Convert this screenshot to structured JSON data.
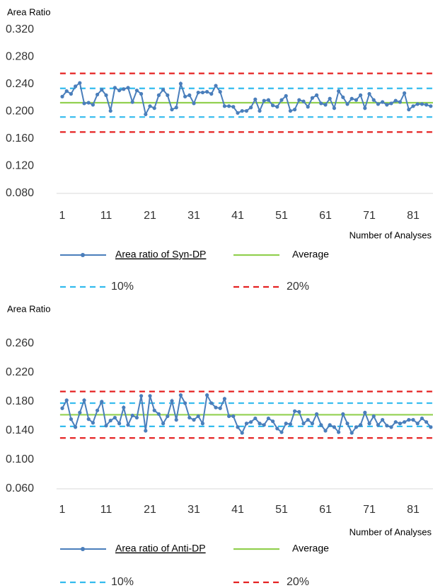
{
  "chart_data": [
    {
      "type": "line",
      "ylabel": "Area Ratio",
      "xlabel": "Number of Analyses",
      "categories": [
        1,
        null,
        null,
        null,
        null,
        null,
        null,
        null,
        null,
        null,
        11,
        null,
        null,
        null,
        null,
        null,
        null,
        null,
        null,
        null,
        21,
        null,
        null,
        null,
        null,
        null,
        null,
        null,
        null,
        null,
        31,
        null,
        null,
        null,
        null,
        null,
        null,
        null,
        null,
        null,
        41,
        null,
        null,
        null,
        null,
        null,
        null,
        null,
        null,
        null,
        51,
        null,
        null,
        null,
        null,
        null,
        null,
        null,
        null,
        null,
        61,
        null,
        null,
        null,
        null,
        null,
        null,
        null,
        null,
        null,
        71,
        null,
        null,
        null,
        null,
        null,
        null,
        null,
        null,
        null,
        81,
        null,
        null,
        null,
        null
      ],
      "series": [
        {
          "name": "Area ratio of Syn-DP",
          "color": "#4a7ebb",
          "values": [
            0.222,
            0.23,
            0.226,
            0.237,
            0.242,
            0.212,
            0.213,
            0.21,
            0.225,
            0.232,
            0.224,
            0.201,
            0.235,
            0.231,
            0.233,
            0.235,
            0.214,
            0.231,
            0.226,
            0.196,
            0.208,
            0.205,
            0.224,
            0.232,
            0.224,
            0.203,
            0.206,
            0.241,
            0.222,
            0.224,
            0.212,
            0.228,
            0.228,
            0.229,
            0.226,
            0.238,
            0.229,
            0.208,
            0.208,
            0.207,
            0.198,
            0.201,
            0.201,
            0.206,
            0.218,
            0.201,
            0.216,
            0.217,
            0.209,
            0.207,
            0.217,
            0.223,
            0.201,
            0.203,
            0.217,
            0.215,
            0.207,
            0.22,
            0.224,
            0.212,
            0.21,
            0.219,
            0.205,
            0.23,
            0.221,
            0.211,
            0.219,
            0.217,
            0.224,
            0.205,
            0.226,
            0.217,
            0.211,
            0.214,
            0.21,
            0.212,
            0.216,
            0.214,
            0.227,
            0.203,
            0.208,
            0.211,
            0.211,
            0.21,
            0.208
          ]
        }
      ],
      "reference_lines": [
        {
          "name": "Average",
          "color": "#92d050",
          "dashed": false,
          "values": [
            0.213
          ]
        },
        {
          "name": "10%",
          "color": "#33bbee",
          "dashed": true,
          "values": [
            0.192,
            0.234
          ]
        },
        {
          "name": "20%",
          "color": "#e52222",
          "dashed": true,
          "values": [
            0.17,
            0.256
          ]
        }
      ],
      "ylim": [
        0.08,
        0.32
      ],
      "yticks": [
        {
          "value": 0.08,
          "label": "0.080"
        },
        {
          "value": 0.12,
          "label": "0.120"
        },
        {
          "value": 0.16,
          "label": "0.160"
        },
        {
          "value": 0.2,
          "label": "0.200"
        },
        {
          "value": 0.24,
          "label": "0.240"
        },
        {
          "value": 0.28,
          "label": "0.280"
        },
        {
          "value": 0.32,
          "label": "0.320"
        }
      ]
    },
    {
      "type": "line",
      "ylabel": "Area Ratio",
      "xlabel": "Number of Analyses",
      "categories": [
        1,
        null,
        null,
        null,
        null,
        null,
        null,
        null,
        null,
        null,
        11,
        null,
        null,
        null,
        null,
        null,
        null,
        null,
        null,
        null,
        21,
        null,
        null,
        null,
        null,
        null,
        null,
        null,
        null,
        null,
        31,
        null,
        null,
        null,
        null,
        null,
        null,
        null,
        null,
        null,
        41,
        null,
        null,
        null,
        null,
        null,
        null,
        null,
        null,
        null,
        51,
        null,
        null,
        null,
        null,
        null,
        null,
        null,
        null,
        null,
        61,
        null,
        null,
        null,
        null,
        null,
        null,
        null,
        null,
        null,
        71,
        null,
        null,
        null,
        null,
        null,
        null,
        null,
        null,
        null,
        81,
        null,
        null,
        null,
        null
      ],
      "series": [
        {
          "name": "Area ratio of Anti-DP",
          "color": "#4a7ebb",
          "values": [
            0.171,
            0.182,
            0.156,
            0.145,
            0.165,
            0.182,
            0.156,
            0.151,
            0.168,
            0.18,
            0.147,
            0.154,
            0.158,
            0.15,
            0.172,
            0.148,
            0.161,
            0.158,
            0.188,
            0.14,
            0.188,
            0.168,
            0.163,
            0.15,
            0.16,
            0.181,
            0.155,
            0.189,
            0.178,
            0.158,
            0.155,
            0.16,
            0.15,
            0.189,
            0.178,
            0.172,
            0.171,
            0.184,
            0.16,
            0.16,
            0.145,
            0.137,
            0.15,
            0.152,
            0.157,
            0.15,
            0.148,
            0.157,
            0.153,
            0.143,
            0.138,
            0.15,
            0.149,
            0.167,
            0.166,
            0.15,
            0.155,
            0.15,
            0.163,
            0.148,
            0.14,
            0.148,
            0.145,
            0.138,
            0.163,
            0.15,
            0.137,
            0.145,
            0.148,
            0.165,
            0.15,
            0.16,
            0.148,
            0.155,
            0.147,
            0.145,
            0.152,
            0.15,
            0.152,
            0.155,
            0.155,
            0.15,
            0.157,
            0.152,
            0.145
          ]
        }
      ],
      "reference_lines": [
        {
          "name": "Average",
          "color": "#92d050",
          "dashed": false,
          "values": [
            0.162
          ]
        },
        {
          "name": "10%",
          "color": "#33bbee",
          "dashed": true,
          "values": [
            0.146,
            0.178
          ]
        },
        {
          "name": "20%",
          "color": "#e52222",
          "dashed": true,
          "values": [
            0.13,
            0.194
          ]
        }
      ],
      "ylim": [
        0.06,
        0.26
      ],
      "yticks": [
        {
          "value": 0.06,
          "label": "0.060"
        },
        {
          "value": 0.1,
          "label": "0.100"
        },
        {
          "value": 0.14,
          "label": "0.140"
        },
        {
          "value": 0.18,
          "label": "0.180"
        },
        {
          "value": 0.22,
          "label": "0.220"
        },
        {
          "value": 0.26,
          "label": "0.260"
        }
      ]
    }
  ]
}
